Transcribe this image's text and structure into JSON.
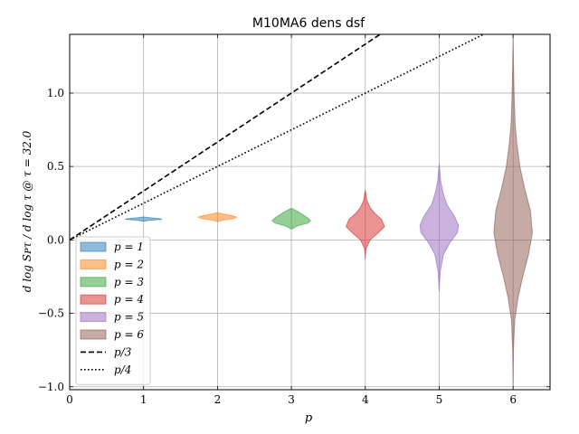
{
  "chart_data": {
    "type": "violin",
    "title": "M10MA6 dens dsf",
    "xlabel": "p",
    "ylabel": "d log Sᴘτ / d log τ @ τ = 32.0",
    "xlim": [
      0,
      6.5
    ],
    "ylim": [
      -1.02,
      1.4
    ],
    "x_ticks": [
      0,
      1,
      2,
      3,
      4,
      5,
      6
    ],
    "x_tick_labels": [
      "0",
      "1",
      "2",
      "3",
      "4",
      "5",
      "6"
    ],
    "y_ticks": [
      -1.0,
      -0.5,
      0.0,
      0.5,
      1.0
    ],
    "y_tick_labels": [
      "−1.0",
      "−0.5",
      "0.0",
      "0.5",
      "1.0"
    ],
    "grid": true,
    "legend_position": "lower-left",
    "series": [
      {
        "name": "p = 1",
        "p": 1,
        "center": 0.142,
        "min": 0.128,
        "max": 0.156,
        "max_halfwidth": 0.25,
        "color": "#1f77b4",
        "profile": [
          [
            0.128,
            0.02
          ],
          [
            0.134,
            0.35
          ],
          [
            0.14,
            0.95
          ],
          [
            0.142,
            1.0
          ],
          [
            0.146,
            0.75
          ],
          [
            0.151,
            0.35
          ],
          [
            0.156,
            0.02
          ]
        ]
      },
      {
        "name": "p = 2",
        "p": 2,
        "center": 0.155,
        "min": 0.125,
        "max": 0.185,
        "max_halfwidth": 0.26,
        "color": "#ff7f0e",
        "profile": [
          [
            0.125,
            0.02
          ],
          [
            0.135,
            0.3
          ],
          [
            0.146,
            0.85
          ],
          [
            0.155,
            1.0
          ],
          [
            0.164,
            0.8
          ],
          [
            0.174,
            0.4
          ],
          [
            0.185,
            0.02
          ]
        ]
      },
      {
        "name": "p = 3",
        "p": 3,
        "center": 0.13,
        "min": 0.075,
        "max": 0.215,
        "max_halfwidth": 0.26,
        "color": "#2ca02c",
        "profile": [
          [
            0.075,
            0.02
          ],
          [
            0.095,
            0.3
          ],
          [
            0.115,
            0.85
          ],
          [
            0.13,
            1.0
          ],
          [
            0.15,
            0.85
          ],
          [
            0.175,
            0.55
          ],
          [
            0.195,
            0.3
          ],
          [
            0.215,
            0.02
          ]
        ]
      },
      {
        "name": "p = 4",
        "p": 4,
        "center": 0.09,
        "min": -0.13,
        "max": 0.34,
        "max_halfwidth": 0.26,
        "color": "#d62728",
        "profile": [
          [
            -0.13,
            0.0
          ],
          [
            -0.06,
            0.03
          ],
          [
            0.0,
            0.25
          ],
          [
            0.04,
            0.6
          ],
          [
            0.09,
            1.0
          ],
          [
            0.14,
            0.85
          ],
          [
            0.18,
            0.5
          ],
          [
            0.22,
            0.25
          ],
          [
            0.27,
            0.08
          ],
          [
            0.34,
            0.0
          ]
        ]
      },
      {
        "name": "p = 5",
        "p": 5,
        "center": 0.08,
        "min": -0.35,
        "max": 0.52,
        "max_halfwidth": 0.26,
        "color": "#9467bd",
        "profile": [
          [
            -0.35,
            0.0
          ],
          [
            -0.22,
            0.05
          ],
          [
            -0.1,
            0.22
          ],
          [
            -0.02,
            0.55
          ],
          [
            0.05,
            0.95
          ],
          [
            0.1,
            1.0
          ],
          [
            0.16,
            0.8
          ],
          [
            0.24,
            0.4
          ],
          [
            0.32,
            0.2
          ],
          [
            0.4,
            0.08
          ],
          [
            0.52,
            0.0
          ]
        ]
      },
      {
        "name": "p = 6",
        "p": 6,
        "center": 0.05,
        "min": -1.0,
        "max": 1.38,
        "max_halfwidth": 0.26,
        "color": "#8c564b",
        "profile": [
          [
            -1.0,
            0.0
          ],
          [
            -0.75,
            0.02
          ],
          [
            -0.55,
            0.08
          ],
          [
            -0.4,
            0.25
          ],
          [
            -0.25,
            0.5
          ],
          [
            -0.1,
            0.8
          ],
          [
            0.05,
            1.0
          ],
          [
            0.2,
            0.9
          ],
          [
            0.35,
            0.6
          ],
          [
            0.5,
            0.35
          ],
          [
            0.65,
            0.2
          ],
          [
            0.8,
            0.1
          ],
          [
            1.0,
            0.05
          ],
          [
            1.2,
            0.02
          ],
          [
            1.38,
            0.0
          ]
        ]
      }
    ],
    "reference_lines": [
      {
        "name": "p/3",
        "slope": 0.3333,
        "style": "dashed",
        "color": "#000000"
      },
      {
        "name": "p/4",
        "slope": 0.25,
        "style": "dotted",
        "color": "#000000"
      }
    ]
  }
}
